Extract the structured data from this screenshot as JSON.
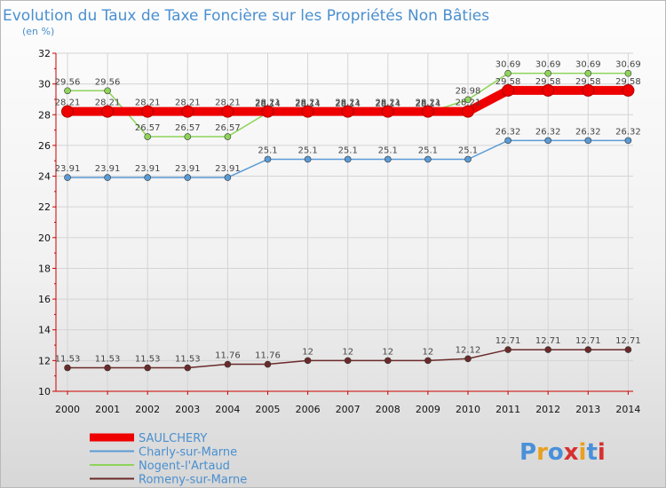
{
  "chart_data": {
    "type": "line",
    "title": "Evolution du Taux de Taxe Foncière sur les Propriétés Non Bâties",
    "subtitle": "(en %)",
    "xlabel": "",
    "ylabel": "",
    "x": [
      "2000",
      "2001",
      "2002",
      "2003",
      "2004",
      "2005",
      "2006",
      "2007",
      "2008",
      "2009",
      "2010",
      "2011",
      "2012",
      "2013",
      "2014"
    ],
    "ylim": [
      10,
      32
    ],
    "yticks": [
      "10",
      "12",
      "14",
      "16",
      "18",
      "20",
      "22",
      "24",
      "26",
      "28",
      "30",
      "32"
    ],
    "grid": true,
    "legend_position": "bottom-left",
    "series": [
      {
        "name": "SAULCHERY",
        "color": "#ee0000",
        "values": [
          28.21,
          28.21,
          28.21,
          28.21,
          28.21,
          28.21,
          28.21,
          28.21,
          28.21,
          28.21,
          28.21,
          29.58,
          29.58,
          29.58,
          29.58
        ],
        "labels": [
          "28.21",
          "28.21",
          "28.21",
          "28.21",
          "28.21",
          "28.21",
          "28.21",
          "28.21",
          "28.21",
          "28.21",
          "28.21",
          "29.58",
          "29.58",
          "29.58",
          "29.58"
        ]
      },
      {
        "name": "Charly-sur-Marne",
        "color": "#5b9bd5",
        "values": [
          23.91,
          23.91,
          23.91,
          23.91,
          23.91,
          25.1,
          25.1,
          25.1,
          25.1,
          25.1,
          25.1,
          26.32,
          26.32,
          26.32,
          26.32
        ],
        "labels": [
          "23.91",
          "23.91",
          "23.91",
          "23.91",
          "23.91",
          "25.1",
          "25.1",
          "25.1",
          "25.1",
          "25.1",
          "25.1",
          "26.32",
          "26.32",
          "26.32",
          "26.32"
        ]
      },
      {
        "name": "Nogent-l'Artaud",
        "color": "#8ed45a",
        "values": [
          29.56,
          29.56,
          26.57,
          26.57,
          26.57,
          28.14,
          28.14,
          28.14,
          28.14,
          28.14,
          28.98,
          30.69,
          30.69,
          30.69,
          30.69
        ],
        "labels": [
          "29.56",
          "29.56",
          "26.57",
          "26.57",
          "26.57",
          "28.14",
          "28.14",
          "28.14",
          "28.14",
          "28.14",
          "28.98",
          "30.69",
          "30.69",
          "30.69",
          "30.69"
        ]
      },
      {
        "name": "Romeny-sur-Marne",
        "color": "#6b2a2a",
        "values": [
          11.53,
          11.53,
          11.53,
          11.53,
          11.76,
          11.76,
          12,
          12,
          12,
          12,
          12.12,
          12.71,
          12.71,
          12.71,
          12.71
        ],
        "labels": [
          "11.53",
          "11.53",
          "11.53",
          "11.53",
          "11.76",
          "11.76",
          "12",
          "12",
          "12",
          "12",
          "12.12",
          "12.71",
          "12.71",
          "12.71",
          "12.71"
        ]
      }
    ]
  },
  "logo": {
    "text": "Proxiti"
  }
}
